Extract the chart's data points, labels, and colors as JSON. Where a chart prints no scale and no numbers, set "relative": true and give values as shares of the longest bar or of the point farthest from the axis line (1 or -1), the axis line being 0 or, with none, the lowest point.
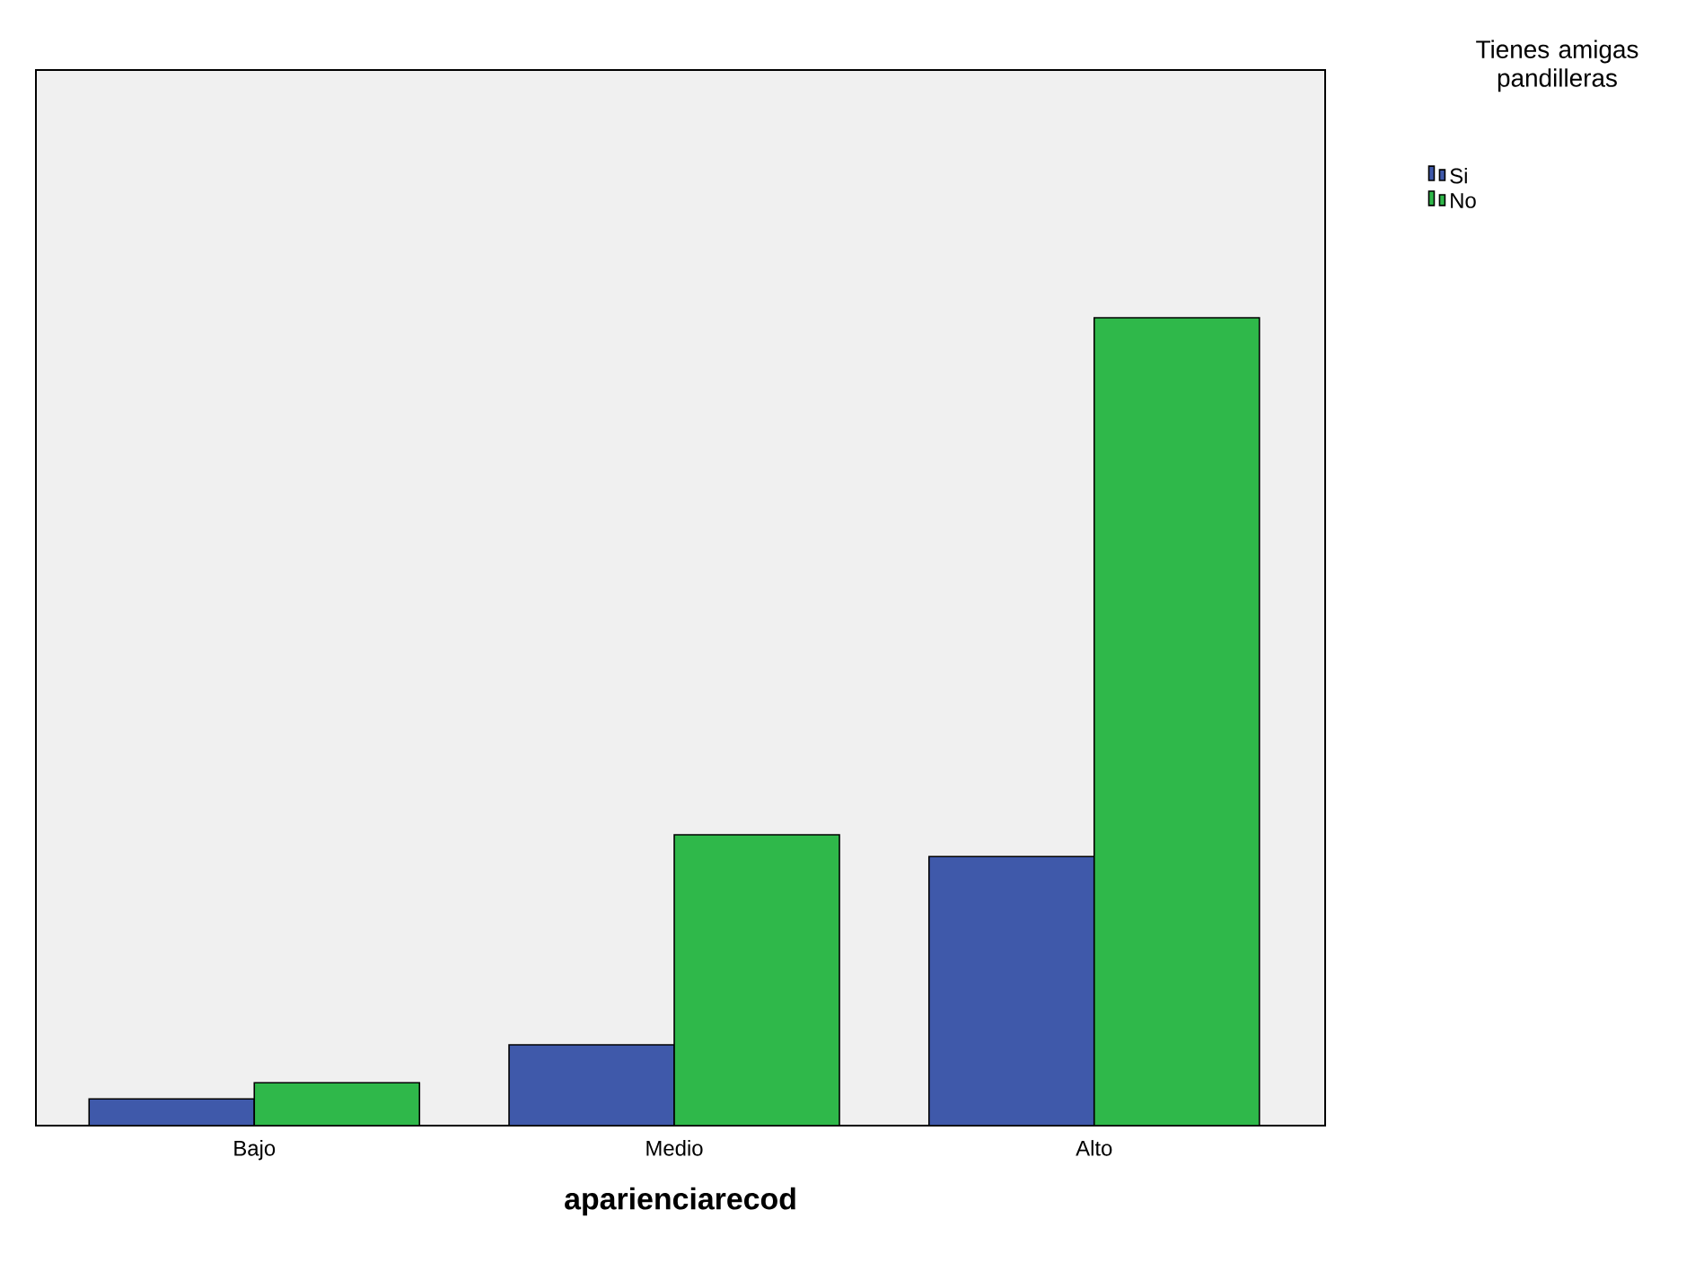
{
  "chart_data": {
    "type": "bar",
    "relative": true,
    "xlabel": "aparienciarecod",
    "legend_title": "Tienes amigas pandilleras",
    "legend": "top right",
    "categories": [
      "Bajo",
      "Medio",
      "Alto"
    ],
    "series": [
      {
        "name": "Si",
        "color": "#3f59aa",
        "values": [
          0.033,
          0.1,
          0.333
        ]
      },
      {
        "name": "No",
        "color": "#2fb84a",
        "values": [
          0.053,
          0.36,
          1
        ]
      }
    ]
  }
}
